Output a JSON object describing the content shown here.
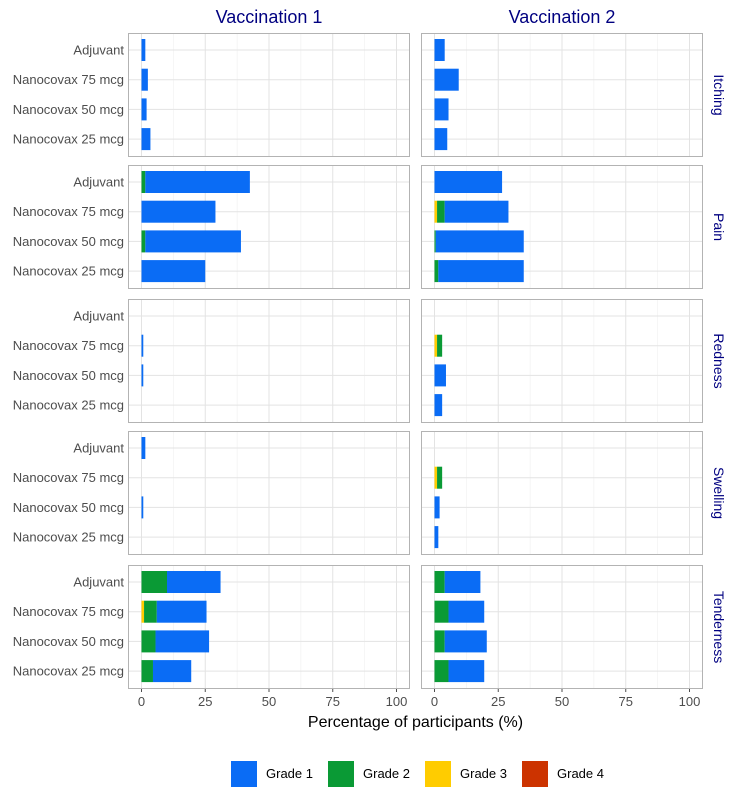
{
  "chart_data": {
    "type": "bar",
    "orientation": "horizontal",
    "stacked": true,
    "xlabel": "Percentage of participants (%)",
    "xlim": [
      0,
      100
    ],
    "xticks": [
      0,
      25,
      50,
      75,
      100
    ],
    "xtick_labels": [
      "0",
      "25",
      "50",
      "75",
      "100"
    ],
    "columns": [
      "Vaccination 1",
      "Vaccination 2"
    ],
    "rows": [
      "Itching",
      "Pain",
      "Redness",
      "Swelling",
      "Tenderness"
    ],
    "categories": [
      "Adjuvant",
      "Nanocovax 75 mcg",
      "Nanocovax 50 mcg",
      "Nanocovax 25 mcg"
    ],
    "grades": [
      {
        "name": "Grade 1",
        "color": "#0a6cf5"
      },
      {
        "name": "Grade 2",
        "color": "#0a9a35"
      },
      {
        "name": "Grade 3",
        "color": "#ffcc00"
      },
      {
        "name": "Grade 4",
        "color": "#cc3300"
      }
    ],
    "legend_position": "bottom",
    "panels": [
      {
        "column": "Vaccination 1",
        "row": "Itching",
        "bars": [
          {
            "category": "Adjuvant",
            "values": [
              1.5,
              0,
              0,
              0
            ]
          },
          {
            "category": "Nanocovax 75 mcg",
            "values": [
              2.5,
              0,
              0,
              0
            ]
          },
          {
            "category": "Nanocovax 50 mcg",
            "values": [
              2,
              0,
              0,
              0
            ]
          },
          {
            "category": "Nanocovax 25 mcg",
            "values": [
              3.5,
              0,
              0,
              0
            ]
          }
        ]
      },
      {
        "column": "Vaccination 2",
        "row": "Itching",
        "bars": [
          {
            "category": "Adjuvant",
            "values": [
              4,
              0,
              0,
              0
            ]
          },
          {
            "category": "Nanocovax 75 mcg",
            "values": [
              9.5,
              0,
              0,
              0
            ]
          },
          {
            "category": "Nanocovax 50 mcg",
            "values": [
              5.5,
              0,
              0,
              0
            ]
          },
          {
            "category": "Nanocovax 25 mcg",
            "values": [
              5,
              0,
              0,
              0
            ]
          }
        ]
      },
      {
        "column": "Vaccination 1",
        "row": "Pain",
        "bars": [
          {
            "category": "Adjuvant",
            "values": [
              41,
              1.5,
              0,
              0
            ]
          },
          {
            "category": "Nanocovax 75 mcg",
            "values": [
              29,
              0,
              0,
              0
            ]
          },
          {
            "category": "Nanocovax 50 mcg",
            "values": [
              37.5,
              1.5,
              0,
              0
            ]
          },
          {
            "category": "Nanocovax 25 mcg",
            "values": [
              25,
              0,
              0,
              0
            ]
          }
        ]
      },
      {
        "column": "Vaccination 2",
        "row": "Pain",
        "bars": [
          {
            "category": "Adjuvant",
            "values": [
              26.5,
              0,
              0,
              0
            ]
          },
          {
            "category": "Nanocovax 75 mcg",
            "values": [
              25,
              3,
              1,
              0
            ]
          },
          {
            "category": "Nanocovax 50 mcg",
            "values": [
              34.5,
              0.5,
              0,
              0
            ]
          },
          {
            "category": "Nanocovax 25 mcg",
            "values": [
              33.5,
              1.5,
              0,
              0
            ]
          }
        ]
      },
      {
        "column": "Vaccination 1",
        "row": "Redness",
        "bars": [
          {
            "category": "Adjuvant",
            "values": [
              0,
              0,
              0,
              0
            ]
          },
          {
            "category": "Nanocovax 75 mcg",
            "values": [
              0.7,
              0,
              0,
              0
            ]
          },
          {
            "category": "Nanocovax 50 mcg",
            "values": [
              0.7,
              0,
              0,
              0
            ]
          },
          {
            "category": "Nanocovax 25 mcg",
            "values": [
              0,
              0,
              0,
              0
            ]
          }
        ]
      },
      {
        "column": "Vaccination 2",
        "row": "Redness",
        "bars": [
          {
            "category": "Adjuvant",
            "values": [
              0,
              0,
              0,
              0
            ]
          },
          {
            "category": "Nanocovax 75 mcg",
            "values": [
              0,
              2,
              1,
              0
            ]
          },
          {
            "category": "Nanocovax 50 mcg",
            "values": [
              4.5,
              0,
              0,
              0
            ]
          },
          {
            "category": "Nanocovax 25 mcg",
            "values": [
              3,
              0,
              0,
              0
            ]
          }
        ]
      },
      {
        "column": "Vaccination 1",
        "row": "Swelling",
        "bars": [
          {
            "category": "Adjuvant",
            "values": [
              1.5,
              0,
              0,
              0
            ]
          },
          {
            "category": "Nanocovax 75 mcg",
            "values": [
              0,
              0,
              0,
              0
            ]
          },
          {
            "category": "Nanocovax 50 mcg",
            "values": [
              0.7,
              0,
              0,
              0
            ]
          },
          {
            "category": "Nanocovax 25 mcg",
            "values": [
              0,
              0,
              0,
              0
            ]
          }
        ]
      },
      {
        "column": "Vaccination 2",
        "row": "Swelling",
        "bars": [
          {
            "category": "Adjuvant",
            "values": [
              0,
              0,
              0,
              0
            ]
          },
          {
            "category": "Nanocovax 75 mcg",
            "values": [
              0,
              2,
              1,
              0
            ]
          },
          {
            "category": "Nanocovax 50 mcg",
            "values": [
              2,
              0,
              0,
              0
            ]
          },
          {
            "category": "Nanocovax 25 mcg",
            "values": [
              1.5,
              0,
              0,
              0
            ]
          }
        ]
      },
      {
        "column": "Vaccination 1",
        "row": "Tenderness",
        "bars": [
          {
            "category": "Adjuvant",
            "values": [
              21,
              10,
              0,
              0
            ]
          },
          {
            "category": "Nanocovax 75 mcg",
            "values": [
              19.5,
              5,
              1,
              0
            ]
          },
          {
            "category": "Nanocovax 50 mcg",
            "values": [
              21,
              5.5,
              0,
              0
            ]
          },
          {
            "category": "Nanocovax 25 mcg",
            "values": [
              15,
              4.5,
              0,
              0
            ]
          }
        ]
      },
      {
        "column": "Vaccination 2",
        "row": "Tenderness",
        "bars": [
          {
            "category": "Adjuvant",
            "values": [
              14,
              4,
              0,
              0
            ]
          },
          {
            "category": "Nanocovax 75 mcg",
            "values": [
              14,
              5.5,
              0,
              0
            ]
          },
          {
            "category": "Nanocovax 50 mcg",
            "values": [
              16.5,
              4,
              0,
              0
            ]
          },
          {
            "category": "Nanocovax 25 mcg",
            "values": [
              14,
              5.5,
              0,
              0
            ]
          }
        ]
      }
    ]
  }
}
